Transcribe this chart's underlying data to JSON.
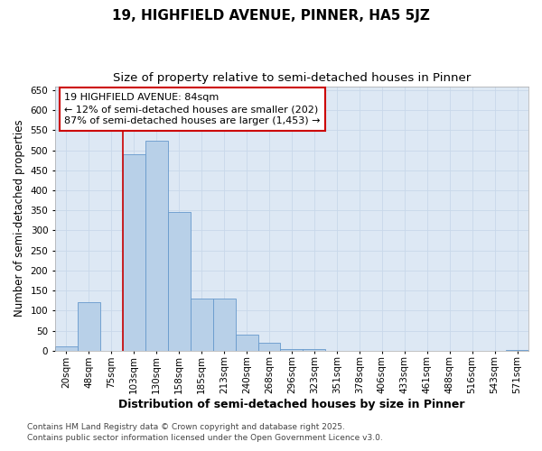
{
  "title_line1": "19, HIGHFIELD AVENUE, PINNER, HA5 5JZ",
  "title_line2": "Size of property relative to semi-detached houses in Pinner",
  "xlabel": "Distribution of semi-detached houses by size in Pinner",
  "ylabel": "Number of semi-detached properties",
  "categories": [
    "20sqm",
    "48sqm",
    "75sqm",
    "103sqm",
    "130sqm",
    "158sqm",
    "185sqm",
    "213sqm",
    "240sqm",
    "268sqm",
    "296sqm",
    "323sqm",
    "351sqm",
    "378sqm",
    "406sqm",
    "433sqm",
    "461sqm",
    "488sqm",
    "516sqm",
    "543sqm",
    "571sqm"
  ],
  "values": [
    10,
    120,
    0,
    490,
    525,
    345,
    130,
    130,
    40,
    20,
    5,
    5,
    0,
    0,
    0,
    0,
    0,
    0,
    0,
    0,
    2
  ],
  "bar_color": "#b8d0e8",
  "bar_edge_color": "#6699cc",
  "vline_color": "#cc0000",
  "vline_x_index": 2,
  "annotation_title": "19 HIGHFIELD AVENUE: 84sqm",
  "annotation_line1": "← 12% of semi-detached houses are smaller (202)",
  "annotation_line2": "87% of semi-detached houses are larger (1,453) →",
  "annotation_box_edgecolor": "#cc0000",
  "ylim": [
    0,
    660
  ],
  "yticks": [
    0,
    50,
    100,
    150,
    200,
    250,
    300,
    350,
    400,
    450,
    500,
    550,
    600,
    650
  ],
  "grid_color": "#c8d8ea",
  "plot_bg_color": "#dde8f4",
  "fig_bg_color": "#ffffff",
  "footer_line1": "Contains HM Land Registry data © Crown copyright and database right 2025.",
  "footer_line2": "Contains public sector information licensed under the Open Government Licence v3.0.",
  "title_fontsize": 11,
  "subtitle_fontsize": 9.5,
  "ylabel_fontsize": 8.5,
  "xlabel_fontsize": 9,
  "tick_fontsize": 7.5,
  "annotation_fontsize": 8,
  "footer_fontsize": 6.5
}
